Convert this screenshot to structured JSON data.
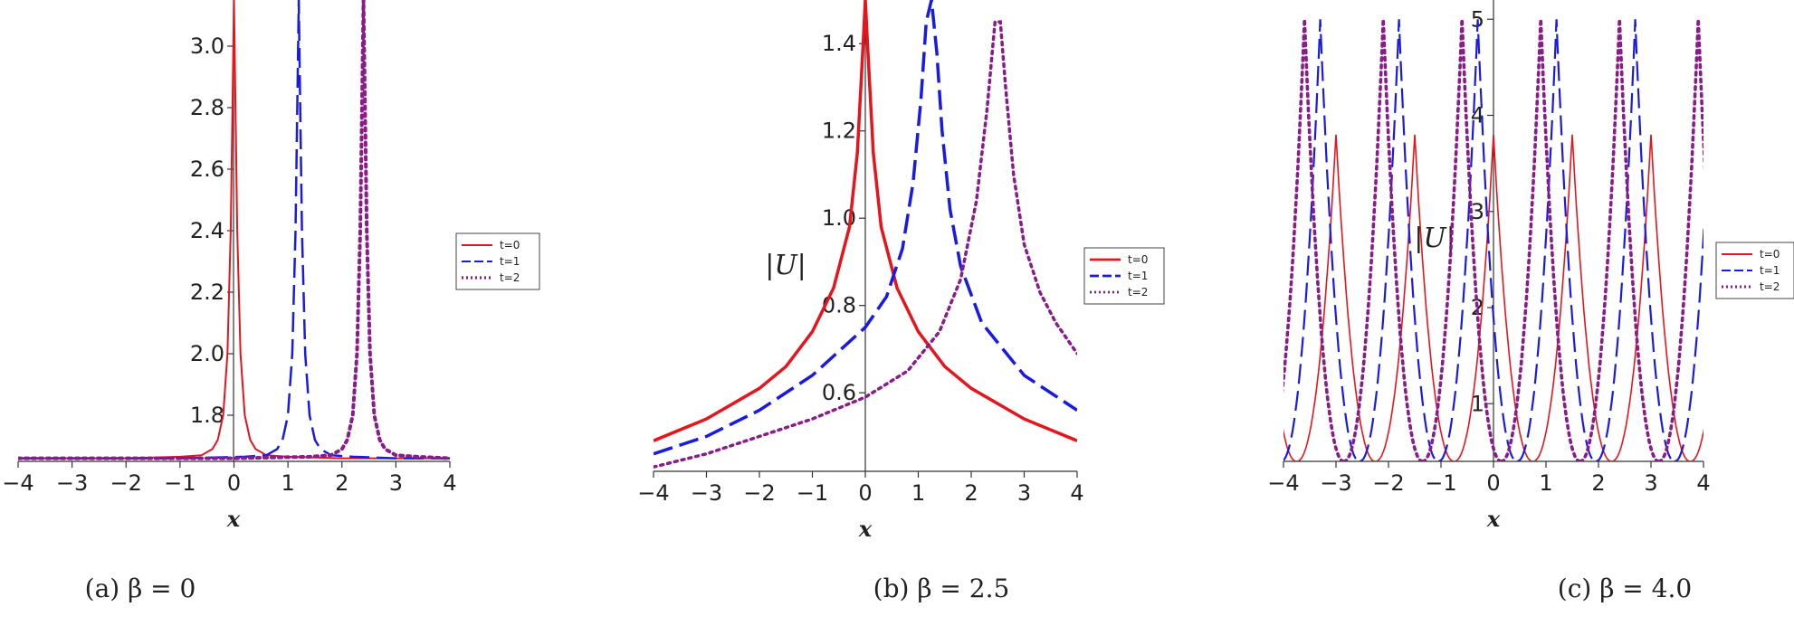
{
  "chart_data": [
    {
      "type": "line",
      "caption": "(a) β = 0",
      "xlabel": "x",
      "ylabel": "",
      "xlim": [
        -4,
        4
      ],
      "ylim": [
        1.65,
        3.15
      ],
      "xticks": [
        -4,
        -3,
        -2,
        -1,
        0,
        1,
        2,
        3,
        4
      ],
      "xtick_labels": [
        "−4",
        "−3",
        "−2",
        "−1",
        "0",
        "1",
        "2",
        "3",
        "4"
      ],
      "yticks": [
        1.8,
        2.0,
        2.2,
        2.4,
        2.6,
        2.8,
        3.0
      ],
      "ytick_labels": [
        "1.8",
        "2.0",
        "2.2",
        "2.4",
        "2.6",
        "2.8",
        "3.0"
      ],
      "legend_position": "right",
      "series": [
        {
          "name": "t=0",
          "color": "#e8141c",
          "style": "solid",
          "x": [
            -4,
            -2,
            -1,
            -0.6,
            -0.4,
            -0.3,
            -0.2,
            -0.12,
            -0.06,
            -0.02,
            0,
            0.02,
            0.06,
            0.12,
            0.2,
            0.3,
            0.4,
            0.6,
            1,
            2,
            4
          ],
          "y": [
            1.66,
            1.66,
            1.665,
            1.67,
            1.69,
            1.72,
            1.8,
            2.0,
            2.4,
            2.9,
            3.15,
            2.9,
            2.4,
            2.0,
            1.8,
            1.72,
            1.69,
            1.67,
            1.665,
            1.66,
            1.66
          ]
        },
        {
          "name": "t=1",
          "color": "#1a1ae6",
          "style": "dashed",
          "x": [
            -4,
            -1,
            0.2,
            0.6,
            0.8,
            0.9,
            1.0,
            1.08,
            1.14,
            1.18,
            1.2,
            1.22,
            1.26,
            1.32,
            1.4,
            1.5,
            1.6,
            1.8,
            2.2,
            3,
            4
          ],
          "y": [
            1.66,
            1.66,
            1.665,
            1.67,
            1.69,
            1.72,
            1.8,
            2.0,
            2.4,
            2.9,
            3.15,
            2.9,
            2.4,
            2.0,
            1.8,
            1.72,
            1.69,
            1.67,
            1.665,
            1.66,
            1.66
          ]
        },
        {
          "name": "t=2",
          "color": "#8b1a8b",
          "style": "dotted",
          "x": [
            -4,
            0,
            1.4,
            1.8,
            2.0,
            2.1,
            2.2,
            2.28,
            2.34,
            2.38,
            2.4,
            2.42,
            2.46,
            2.52,
            2.6,
            2.7,
            2.8,
            3.0,
            3.4,
            4
          ],
          "y": [
            1.66,
            1.66,
            1.665,
            1.67,
            1.69,
            1.72,
            1.8,
            2.0,
            2.4,
            2.9,
            3.15,
            2.9,
            2.4,
            2.0,
            1.8,
            1.72,
            1.69,
            1.67,
            1.665,
            1.66
          ]
        }
      ]
    },
    {
      "type": "line",
      "caption": "(b) β = 2.5",
      "xlabel": "x",
      "ylabel": "|U|",
      "xlim": [
        -4,
        4
      ],
      "ylim": [
        0.42,
        1.5
      ],
      "xticks": [
        -4,
        -3,
        -2,
        -1,
        0,
        1,
        2,
        3,
        4
      ],
      "xtick_labels": [
        "−4",
        "−3",
        "−2",
        "−1",
        "0",
        "1",
        "2",
        "3",
        "4"
      ],
      "yticks": [
        0.6,
        0.8,
        1.0,
        1.2,
        1.4
      ],
      "ytick_labels": [
        "0.6",
        "0.8",
        "1.0",
        "1.2",
        "1.4"
      ],
      "legend_position": "right",
      "series": [
        {
          "name": "t=0",
          "color": "#e8141c",
          "style": "solid",
          "x": [
            -4,
            -3,
            -2,
            -1.5,
            -1,
            -0.6,
            -0.3,
            -0.15,
            -0.05,
            0,
            0.05,
            0.15,
            0.3,
            0.6,
            1,
            1.5,
            2,
            3,
            4
          ],
          "y": [
            0.49,
            0.54,
            0.61,
            0.66,
            0.74,
            0.84,
            0.98,
            1.15,
            1.38,
            1.5,
            1.38,
            1.15,
            0.98,
            0.84,
            0.74,
            0.66,
            0.61,
            0.54,
            0.49
          ]
        },
        {
          "name": "t=1",
          "color": "#1a1ae6",
          "style": "dashed",
          "x": [
            -4,
            -3,
            -2,
            -1,
            0,
            0.4,
            0.7,
            0.9,
            1.05,
            1.15,
            1.25,
            1.35,
            1.45,
            1.6,
            1.8,
            2.2,
            3,
            4
          ],
          "y": [
            0.46,
            0.5,
            0.56,
            0.64,
            0.75,
            0.82,
            0.93,
            1.08,
            1.27,
            1.45,
            1.5,
            1.38,
            1.2,
            1.02,
            0.89,
            0.76,
            0.64,
            0.56
          ]
        },
        {
          "name": "t=2",
          "color": "#8b1a8b",
          "style": "dotted",
          "x": [
            -4,
            -3,
            -2,
            -1,
            0,
            0.8,
            1.4,
            1.8,
            2.1,
            2.3,
            2.45,
            2.55,
            2.65,
            2.8,
            3.0,
            3.3,
            3.6,
            4
          ],
          "y": [
            0.43,
            0.46,
            0.5,
            0.54,
            0.59,
            0.65,
            0.74,
            0.86,
            1.04,
            1.25,
            1.45,
            1.45,
            1.3,
            1.1,
            0.94,
            0.83,
            0.76,
            0.69
          ]
        }
      ]
    },
    {
      "type": "line",
      "caption": "(c) β = 4.0",
      "xlabel": "x",
      "ylabel": "|U|",
      "xlim": [
        -4,
        4
      ],
      "ylim": [
        0.4,
        5.2
      ],
      "xticks": [
        -4,
        -3,
        -2,
        -1,
        0,
        1,
        2,
        3,
        4
      ],
      "xtick_labels": [
        "−4",
        "−3",
        "−2",
        "−1",
        "0",
        "1",
        "2",
        "3",
        "4"
      ],
      "yticks": [
        1,
        2,
        3,
        4,
        5
      ],
      "ytick_labels": [
        "1",
        "2",
        "3",
        "4",
        "5"
      ],
      "legend_position": "right",
      "series": [
        {
          "name": "t=0",
          "color": "#e8141c",
          "style": "solid",
          "x_shift": 0.0,
          "segment_peak": 3.8
        },
        {
          "name": "t=1",
          "color": "#1a1ae6",
          "style": "dashed",
          "x_shift": 1.2,
          "segment_peak": 5.0
        },
        {
          "name": "t=2",
          "color": "#8b1a8b",
          "style": "dotted",
          "x_shift": 2.4,
          "segment_peak": 5.0
        }
      ],
      "period": 1.5,
      "min_value": 0.4
    }
  ]
}
